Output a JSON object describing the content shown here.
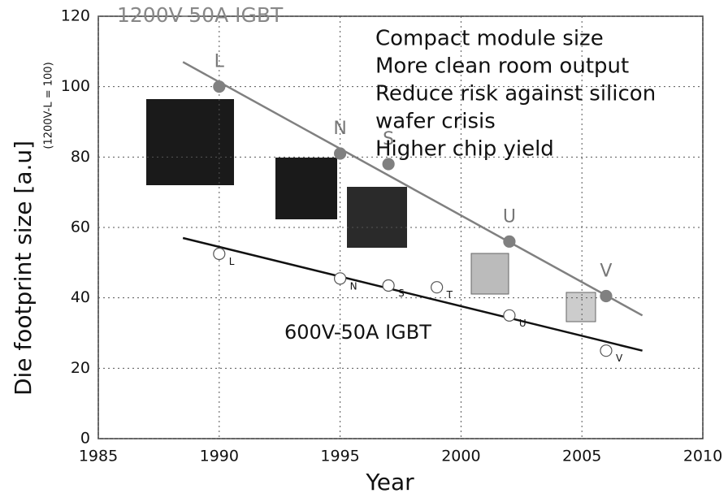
{
  "chart_data": {
    "type": "scatter",
    "y_label": "Die footprint size [a.u]",
    "y_sublabel": "(1200V-L = 100)",
    "x_label": "Year",
    "xlim": [
      1985,
      2010
    ],
    "xticks": [
      1985,
      1990,
      1995,
      2000,
      2005,
      2010
    ],
    "ylim": [
      0,
      120
    ],
    "yticks": [
      0,
      20,
      40,
      60,
      80,
      100,
      120
    ],
    "grid": true,
    "series": [
      {
        "name": "1200V-50A IGBT",
        "color": "#808080",
        "filled": true,
        "x": [
          1990,
          1995,
          1997,
          2002,
          2006
        ],
        "values": [
          100,
          81,
          78,
          56,
          40.5
        ],
        "labels": [
          "L",
          "N",
          "S",
          "U",
          "V"
        ],
        "trend": {
          "x": [
            1988.5,
            2007.5
          ],
          "values": [
            107,
            35
          ]
        }
      },
      {
        "name": "600V-50A IGBT",
        "color": "#111111",
        "filled": false,
        "x": [
          1990,
          1995,
          1997,
          1999,
          2002,
          2006
        ],
        "values": [
          52.5,
          45.5,
          43.5,
          43,
          35,
          25
        ],
        "labels": [
          "L",
          "N",
          "S",
          "T",
          "U",
          "V"
        ],
        "trend": {
          "x": [
            1988.5,
            2007.5
          ],
          "values": [
            57,
            25
          ]
        }
      }
    ],
    "annotations": [
      "Compact module size",
      "More clean room output",
      "Reduce risk against silicon",
      "wafer crisis",
      "Higher chip yield"
    ]
  }
}
